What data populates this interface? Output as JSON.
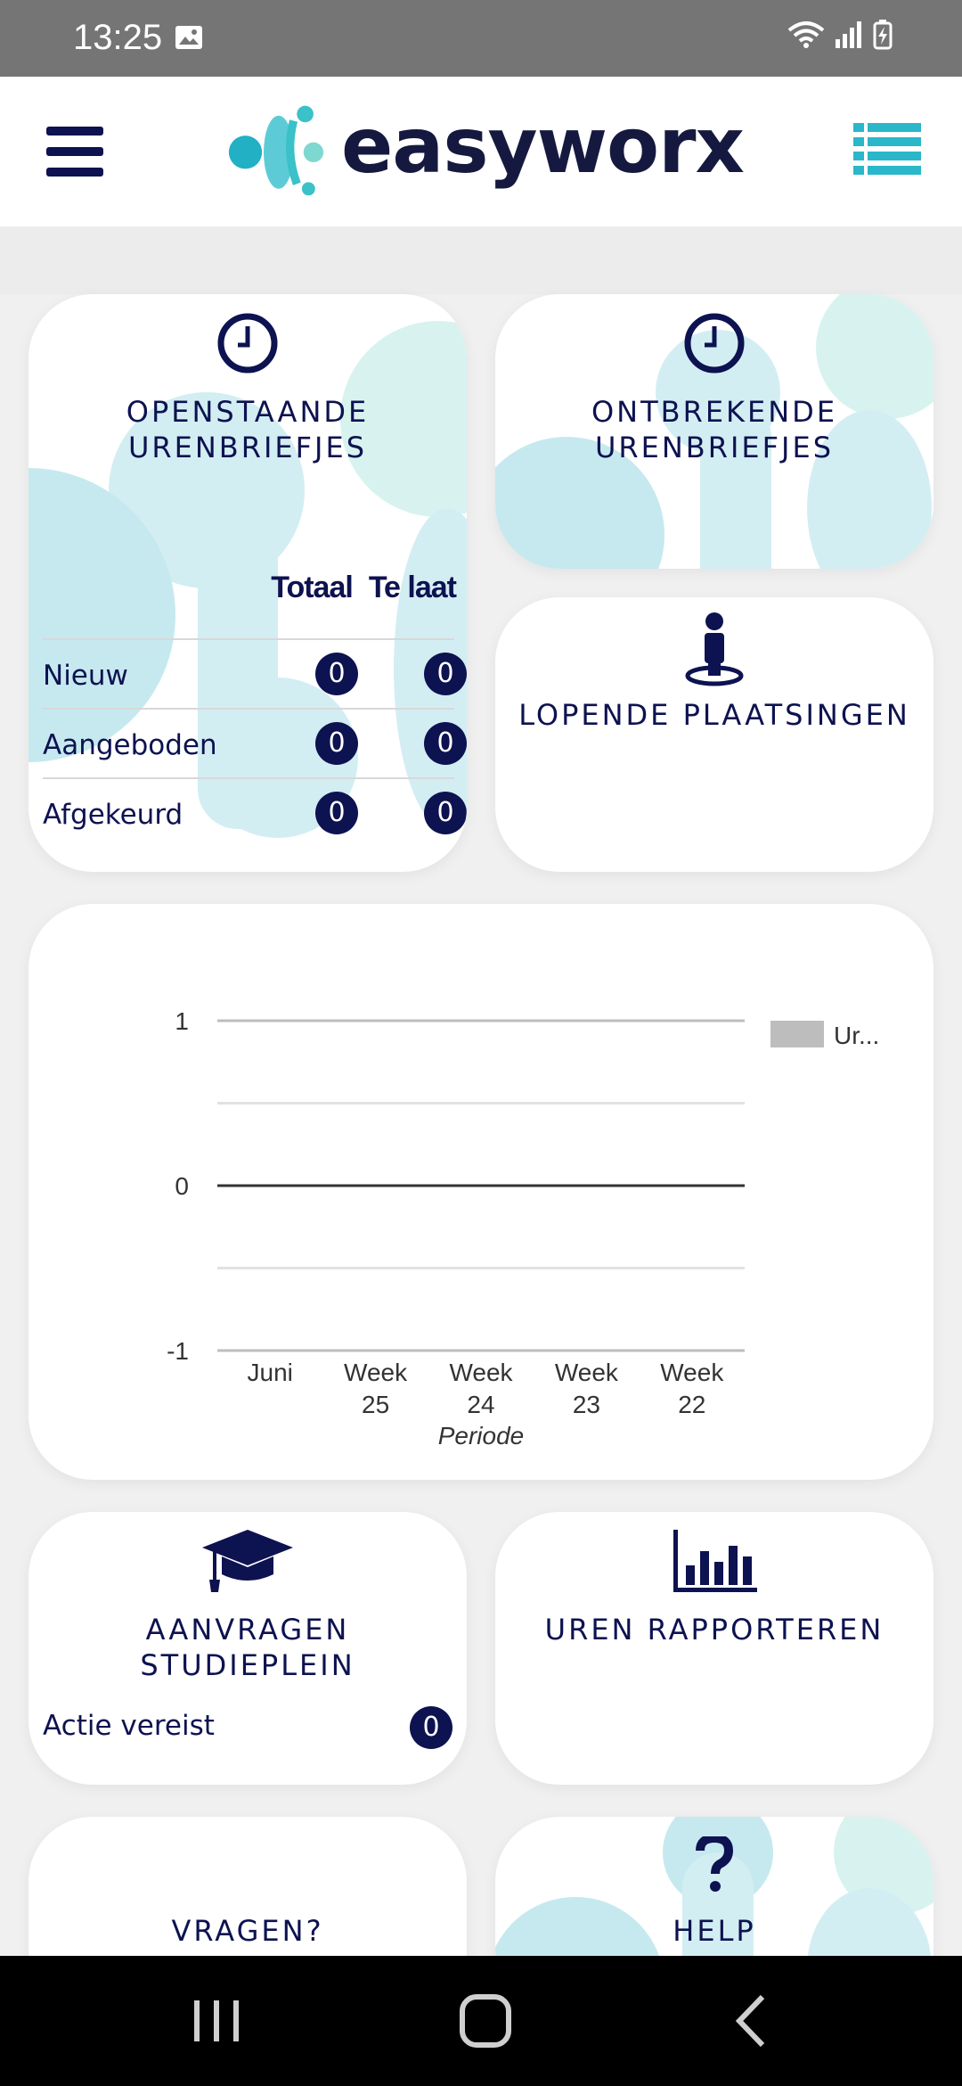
{
  "status_bar": {
    "time": "13:25"
  },
  "header": {
    "logo_text": "easyworx",
    "menu_icon": "hamburger-icon",
    "list_icon": "list-view-icon"
  },
  "cards": {
    "openstaande": {
      "title_line1": "OPENSTAANDE",
      "title_line2": "URENBRIEFJES",
      "col_totaal": "Totaal",
      "col_telaat": "Te laat",
      "rows": [
        {
          "label": "Nieuw",
          "totaal": "0",
          "telaat": "0"
        },
        {
          "label": "Aangeboden",
          "totaal": "0",
          "telaat": "0"
        },
        {
          "label": "Afgekeurd",
          "totaal": "0",
          "telaat": "0"
        }
      ]
    },
    "ontbrekende": {
      "title_line1": "ONTBREKENDE",
      "title_line2": "URENBRIEFJES"
    },
    "lopende": {
      "title": "LOPENDE PLAATSINGEN"
    },
    "aanvragen": {
      "title_line1": "AANVRAGEN",
      "title_line2": "STUDIEPLEIN",
      "action_label": "Actie vereist",
      "action_count": "0"
    },
    "uren": {
      "title": "UREN RAPPORTEREN"
    },
    "vragen": {
      "title": "VRAGEN?"
    },
    "help": {
      "title": "HELP"
    }
  },
  "chart_data": {
    "type": "bar",
    "categories": [
      "Juni",
      "Week 25",
      "Week 24",
      "Week 23",
      "Week 22"
    ],
    "series": [
      {
        "name": "Ur...",
        "values": [
          0,
          0,
          0,
          0,
          0
        ]
      }
    ],
    "xlabel": "Periode",
    "ylabel": "",
    "ylim": [
      -1,
      1
    ],
    "yticks": [
      "1",
      "0",
      "-1"
    ],
    "grid": true,
    "legend": "right",
    "series_color": "#bdbdbd"
  },
  "colors": {
    "navy": "#0d1250",
    "teal": "#2ab7c9",
    "bubble": "#d5eff3"
  }
}
